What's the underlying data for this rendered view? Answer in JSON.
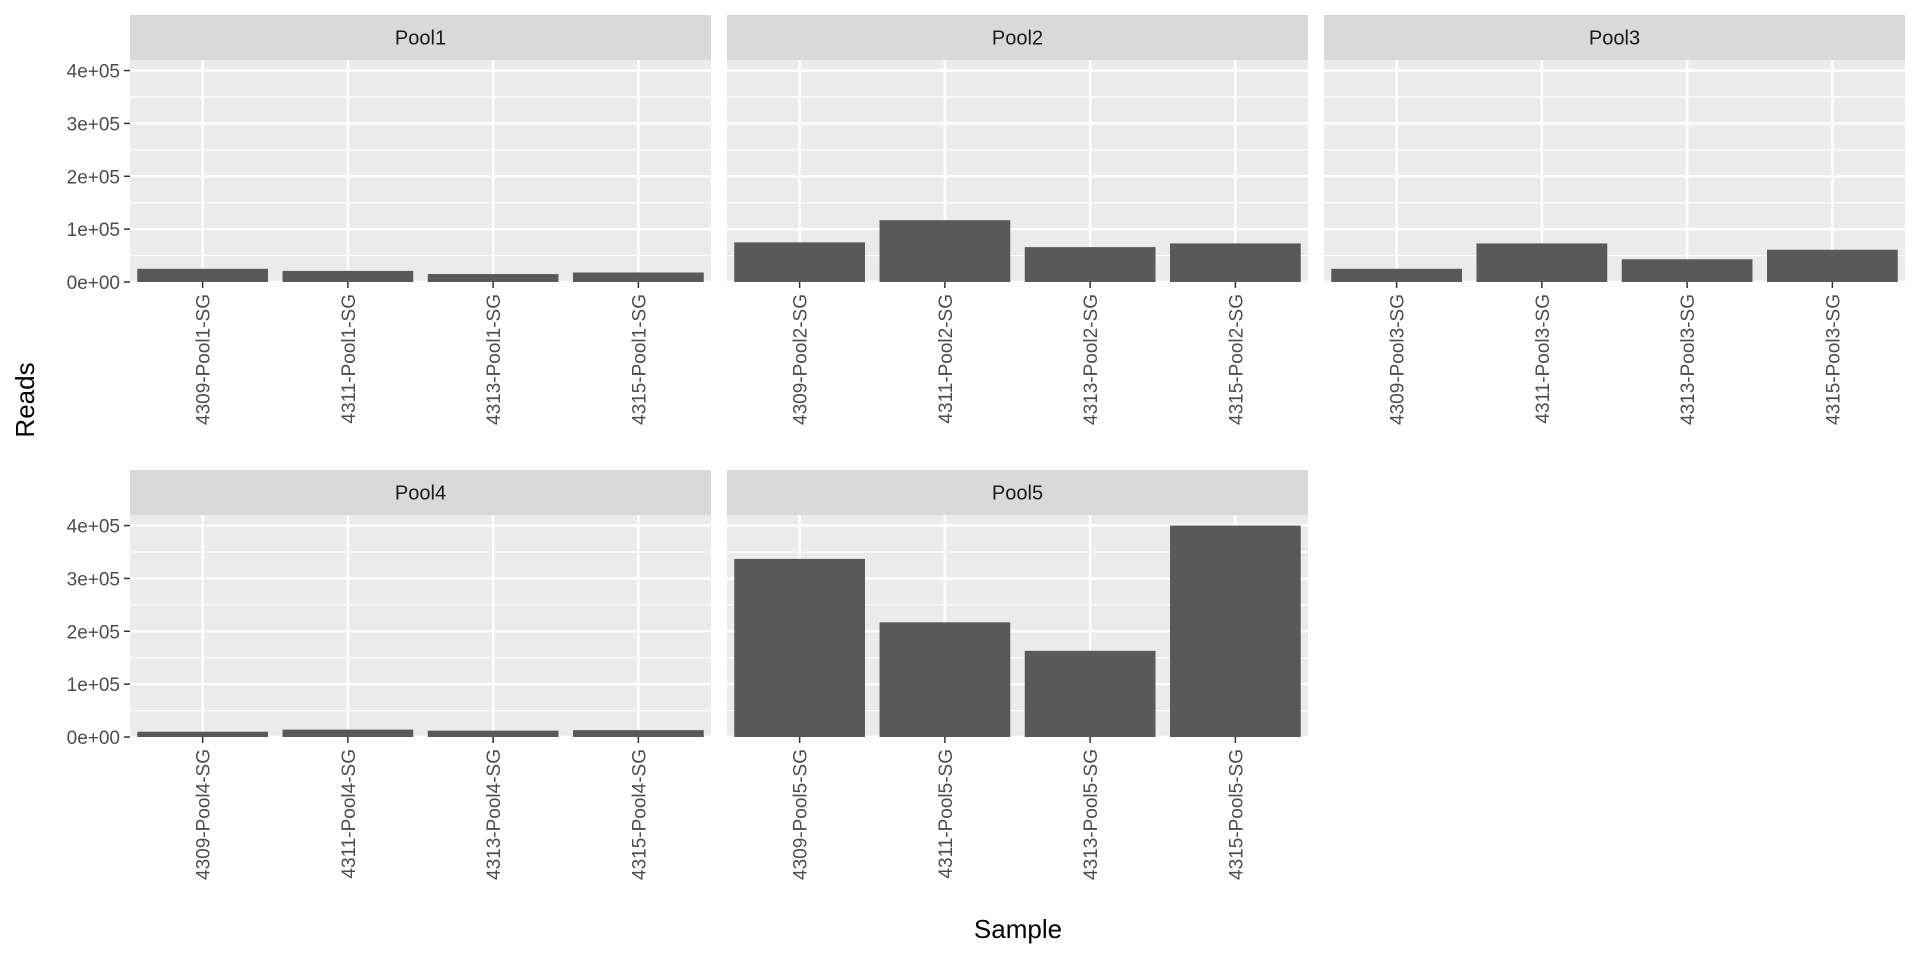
{
  "chart_data": {
    "type": "bar",
    "xlabel": "Sample",
    "ylabel": "Reads",
    "ylim": [
      0,
      420000
    ],
    "yticks": [
      {
        "value": 0,
        "label": "0e+00"
      },
      {
        "value": 100000,
        "label": "1e+05"
      },
      {
        "value": 200000,
        "label": "2e+05"
      },
      {
        "value": 300000,
        "label": "3e+05"
      },
      {
        "value": 400000,
        "label": "4e+05"
      }
    ],
    "grid": true,
    "bar_color": "#595959",
    "panel_color": "#ebebeb",
    "strip_color": "#d9d9d9",
    "facets": [
      {
        "name": "Pool1",
        "categories": [
          "4309-Pool1-SG",
          "4311-Pool1-SG",
          "4313-Pool1-SG",
          "4315-Pool1-SG"
        ],
        "values": [
          25000,
          21000,
          15000,
          18000
        ]
      },
      {
        "name": "Pool2",
        "categories": [
          "4309-Pool2-SG",
          "4311-Pool2-SG",
          "4313-Pool2-SG",
          "4315-Pool2-SG"
        ],
        "values": [
          75000,
          117000,
          66000,
          73000
        ]
      },
      {
        "name": "Pool3",
        "categories": [
          "4309-Pool3-SG",
          "4311-Pool3-SG",
          "4313-Pool3-SG",
          "4315-Pool3-SG"
        ],
        "values": [
          25000,
          73000,
          43000,
          61000
        ]
      },
      {
        "name": "Pool4",
        "categories": [
          "4309-Pool4-SG",
          "4311-Pool4-SG",
          "4313-Pool4-SG",
          "4315-Pool4-SG"
        ],
        "values": [
          10000,
          14000,
          12000,
          13000
        ]
      },
      {
        "name": "Pool5",
        "categories": [
          "4309-Pool5-SG",
          "4311-Pool5-SG",
          "4313-Pool5-SG",
          "4315-Pool5-SG"
        ],
        "values": [
          337000,
          217000,
          163000,
          400000
        ]
      }
    ]
  }
}
